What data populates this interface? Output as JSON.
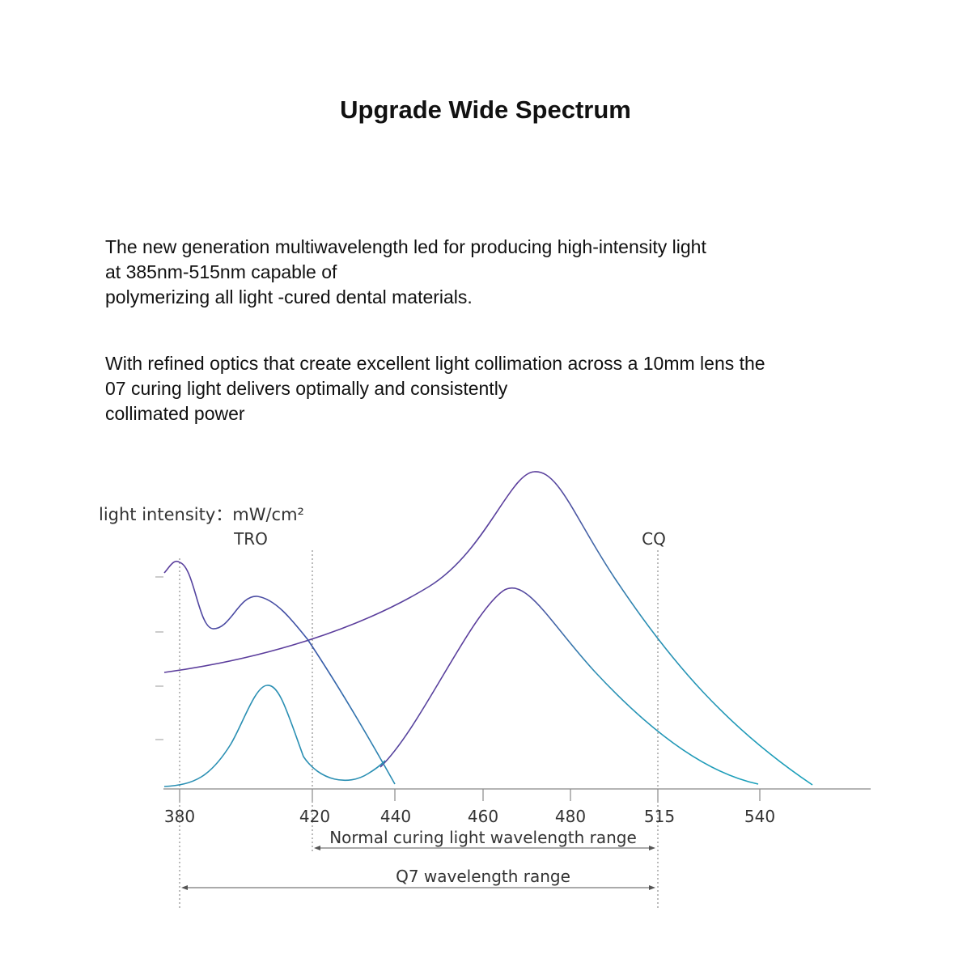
{
  "page": {
    "title": "Upgrade Wide Spectrum",
    "paragraph1": [
      "The new generation multiwavelength led for producing high-intensity light",
      "at 385nm-515nm capable of",
      "polymerizing all light -cured dental materials."
    ],
    "paragraph2": [
      "With refined optics that create excellent light collimation across a 10mm lens the",
      "07 curing light delivers optimally and consistently",
      "collimated power"
    ]
  },
  "chart_data": {
    "type": "line",
    "ylabel": "light intensity：mW/cm²",
    "xlabel": "",
    "x_ticks": [
      "380",
      "420",
      "440",
      "460",
      "480",
      "515",
      "540"
    ],
    "labels": {
      "tro": "TRO",
      "cq": "CQ"
    },
    "ranges": [
      {
        "label": "Normal curing light wavelength range",
        "from": 420,
        "to": 515
      },
      {
        "label": "Q7 wavelength range",
        "from": 380,
        "to": 515
      }
    ],
    "colors": {
      "purple": "#5b3d9c",
      "teal": "#2a8fb3",
      "axis": "#888888"
    }
  }
}
